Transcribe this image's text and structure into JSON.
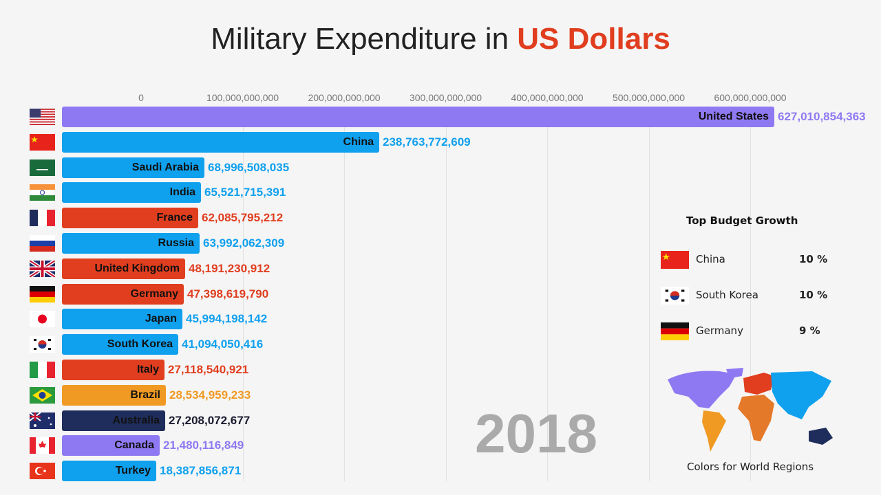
{
  "title": {
    "prefix": "Military Expenditure in",
    "highlight": "US Dollars"
  },
  "year": "2018",
  "chart_data": {
    "type": "bar",
    "title": "Military Expenditure in US Dollars",
    "orientation": "horizontal",
    "x_ticks": [
      "0",
      "100,000,000,000",
      "200,000,000,000",
      "300,000,000,000",
      "400,000,000,000",
      "500,000,000,000",
      "600,000,000,000"
    ],
    "xlim": [
      0,
      640000000000
    ],
    "grid": true,
    "bars": [
      {
        "name": "United States",
        "value": 627010854363,
        "label": "627,010,854,363",
        "color": "#8f79f2",
        "flag": "us"
      },
      {
        "name": "China",
        "value": 238763772609,
        "label": "238,763,772,609",
        "color": "#0fa0ee",
        "flag": "cn"
      },
      {
        "name": "Saudi Arabia",
        "value": 68996508035,
        "label": "68,996,508,035",
        "color": "#0fa0ee",
        "flag": "sa"
      },
      {
        "name": "India",
        "value": 65521715391,
        "label": "65,521,715,391",
        "color": "#0fa0ee",
        "flag": "in"
      },
      {
        "name": "France",
        "value": 62085795212,
        "label": "62,085,795,212",
        "color": "#e03e1f",
        "flag": "fr"
      },
      {
        "name": "Russia",
        "value": 63992062309,
        "label": "63,992,062,309",
        "color": "#0fa0ee",
        "flag": "ru"
      },
      {
        "name": "United Kingdom",
        "value": 48191230912,
        "label": "48,191,230,912",
        "color": "#e03e1f",
        "flag": "gb"
      },
      {
        "name": "Germany",
        "value": 47398619790,
        "label": "47,398,619,790",
        "color": "#e03e1f",
        "flag": "de"
      },
      {
        "name": "Japan",
        "value": 45994198142,
        "label": "45,994,198,142",
        "color": "#0fa0ee",
        "flag": "jp"
      },
      {
        "name": "South Korea",
        "value": 41094050416,
        "label": "41,094,050,416",
        "color": "#0fa0ee",
        "flag": "kr"
      },
      {
        "name": "Italy",
        "value": 27118540921,
        "label": "27,118,540,921",
        "color": "#e03e1f",
        "flag": "it"
      },
      {
        "name": "Brazil",
        "value": 28534959233,
        "label": "28,534,959,233",
        "color": "#f09a23",
        "flag": "br"
      },
      {
        "name": "Australia",
        "value": 27208072677,
        "label": "27,208,072,677",
        "color": "#1f2d5c",
        "flag": "au"
      },
      {
        "name": "Canada",
        "value": 21480116849,
        "label": "21,480,116,849",
        "color": "#8f79f2",
        "flag": "ca"
      },
      {
        "name": "Turkey",
        "value": 18387856871,
        "label": "18,387,856,871",
        "color": "#0fa0ee",
        "flag": "tr"
      }
    ]
  },
  "growth": {
    "title": "Top Budget Growth",
    "items": [
      {
        "name": "China",
        "value": "10 %",
        "flag": "cn"
      },
      {
        "name": "South Korea",
        "value": "10 %",
        "flag": "kr"
      },
      {
        "name": "Germany",
        "value": "9 %",
        "flag": "de"
      }
    ]
  },
  "map": {
    "caption": "Colors for World Regions",
    "colors": {
      "americas_north": "#8f79f2",
      "americas_south": "#f09a23",
      "europe": "#e03e1f",
      "africa": "#e5792a",
      "asia": "#0fa0ee",
      "oceania": "#1f2d5c"
    }
  }
}
